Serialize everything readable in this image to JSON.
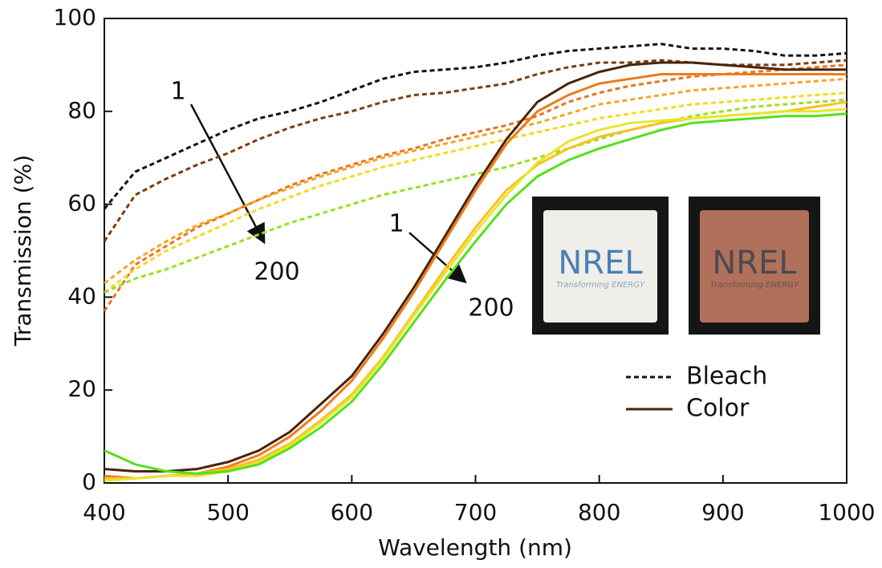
{
  "chart_data": {
    "type": "line",
    "x_label": "Wavelength (nm)",
    "y_label": "Transmission (%)",
    "xlim": [
      400,
      1000
    ],
    "xticks": [
      400,
      500,
      600,
      700,
      800,
      900,
      1000
    ],
    "ylim": [
      0,
      100
    ],
    "yticks": [
      0,
      20,
      40,
      60,
      80,
      100
    ],
    "x": [
      400,
      425,
      450,
      475,
      500,
      525,
      550,
      575,
      600,
      625,
      650,
      675,
      700,
      725,
      750,
      775,
      800,
      825,
      850,
      875,
      900,
      925,
      950,
      975,
      1000
    ],
    "series": [
      {
        "color": "#111111",
        "dash": true,
        "values": [
          59,
          67,
          70,
          73,
          76,
          78.5,
          80,
          82,
          84.5,
          87,
          88.5,
          89,
          89.5,
          90.5,
          92,
          93,
          93.5,
          94,
          94.5,
          93.5,
          93.5,
          93,
          92,
          92,
          92.5
        ]
      },
      {
        "color": "#7a3e0c",
        "dash": true,
        "values": [
          52,
          62,
          65.5,
          68.5,
          71,
          74,
          76.5,
          78.5,
          80,
          82,
          83.5,
          84,
          85,
          86,
          88,
          89.5,
          90.5,
          90.5,
          91,
          90.5,
          90,
          90,
          90,
          90.5,
          91
        ]
      },
      {
        "color": "#e8741c",
        "dash": true,
        "values": [
          37,
          47,
          51,
          55,
          58,
          61,
          64,
          66.5,
          68.5,
          70.5,
          72,
          74,
          75.5,
          77,
          79,
          82,
          84,
          85.5,
          86.5,
          87.5,
          88,
          88.5,
          89,
          89.5,
          90
        ]
      },
      {
        "color": "#f5a623",
        "dash": true,
        "values": [
          43,
          48,
          52,
          55.5,
          58,
          61,
          63.5,
          66,
          68,
          70,
          71.5,
          73,
          74.5,
          76,
          77.5,
          79.5,
          81.5,
          82.5,
          83.5,
          84.5,
          85,
          85.5,
          86,
          86.5,
          87
        ]
      },
      {
        "color": "#f2dc1c",
        "dash": true,
        "values": [
          41,
          46,
          50,
          53,
          56,
          59,
          61.5,
          64,
          66,
          68,
          69.5,
          71,
          72.5,
          74,
          75.5,
          77,
          78.5,
          79.5,
          80.5,
          81.5,
          82,
          82.5,
          83,
          83.5,
          84
        ]
      },
      {
        "color": "#9be01c",
        "dash": true,
        "values": [
          41,
          44,
          46,
          48.5,
          51,
          53.5,
          56,
          58,
          60,
          62,
          63.5,
          65,
          66.5,
          68,
          70,
          72,
          74,
          76,
          77.5,
          79,
          80,
          81,
          81.5,
          82,
          82.5
        ]
      },
      {
        "color": "#4a2308",
        "dash": false,
        "values": [
          3,
          2.5,
          2.5,
          3,
          4.5,
          7,
          11,
          17,
          23,
          32,
          42,
          53,
          64,
          74,
          82,
          86,
          88.5,
          90,
          90.5,
          90.5,
          90,
          89.5,
          89,
          89,
          89
        ]
      },
      {
        "color": "#ef7a1a",
        "dash": false,
        "values": [
          1.5,
          1,
          1.5,
          2,
          3.5,
          6,
          10,
          15.5,
          22,
          31,
          41,
          52,
          63,
          73,
          80,
          83.5,
          86,
          87,
          88,
          88,
          88,
          88,
          88,
          88,
          88
        ]
      },
      {
        "color": "#fbbf24",
        "dash": false,
        "values": [
          1,
          1,
          1.5,
          2,
          3,
          5,
          8.5,
          13.5,
          19,
          27,
          36.5,
          46,
          55,
          63,
          68.5,
          72,
          74.5,
          76,
          77.5,
          78.5,
          79,
          79.5,
          80,
          81,
          82
        ]
      },
      {
        "color": "#e6e62a",
        "dash": false,
        "values": [
          0.5,
          1,
          1.5,
          1.5,
          2.5,
          4.5,
          8,
          13,
          18.5,
          26.5,
          36,
          45,
          54,
          62,
          69,
          73.5,
          76,
          77.5,
          78,
          78.5,
          79,
          79.5,
          80,
          80,
          80.5
        ]
      },
      {
        "color": "#55e01a",
        "dash": false,
        "values": [
          7,
          4,
          2.5,
          2,
          2.5,
          4,
          7.5,
          12,
          17.5,
          25.5,
          34.5,
          43.5,
          52,
          60,
          66,
          69.5,
          72,
          74,
          76,
          77.5,
          78,
          78.5,
          79,
          79,
          79.5
        ]
      }
    ],
    "legend": [
      {
        "label": "Bleach",
        "color": "#111111",
        "dash": true
      },
      {
        "label": "Color",
        "color": "#4a2308",
        "dash": false
      }
    ],
    "annotations": [
      "1",
      "200",
      "1",
      "200"
    ],
    "insets": [
      {
        "logo": "NREL",
        "tagline": "Transforming ENERGY"
      },
      {
        "logo": "NREL",
        "tagline": "Transforming ENERGY"
      }
    ]
  }
}
